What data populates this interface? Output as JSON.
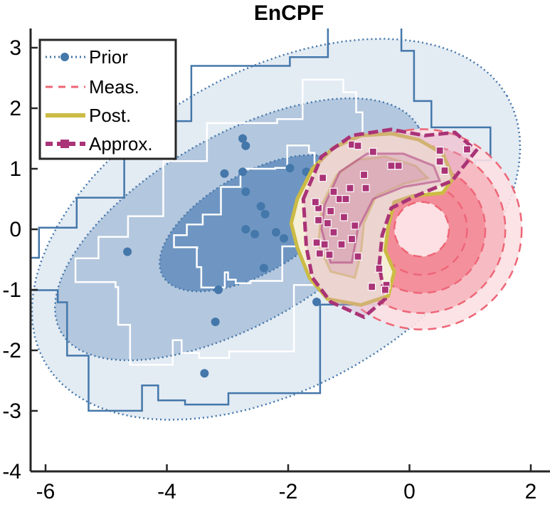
{
  "chart_data": {
    "type": "contour",
    "title": "EnCPF",
    "xlabel": "",
    "ylabel": "",
    "xlim": [
      -6.25,
      2.3
    ],
    "ylim": [
      -4,
      3.3
    ],
    "xticks": [
      -6,
      -4,
      -2,
      0,
      2
    ],
    "xtick_labels": [
      "-6",
      "-4",
      "-2",
      "0",
      "2"
    ],
    "yticks": [
      -4,
      -3,
      -2,
      -1,
      0,
      1,
      2,
      3
    ],
    "ytick_labels": [
      "-4",
      "-3",
      "-2",
      "-1",
      "0",
      "1",
      "2",
      "3"
    ],
    "legend": {
      "location": "top-left",
      "entries": [
        {
          "label": "Prior",
          "style": "dotted line with circle marker",
          "color": "#4477aa"
        },
        {
          "label": "Meas.",
          "style": "dashed line",
          "color": "#ee6677"
        },
        {
          "label": "Post.",
          "style": "solid thick line",
          "color": "#ccbb44"
        },
        {
          "label": "Approx.",
          "style": "thick dashed line with square marker",
          "color": "#aa3377"
        }
      ]
    },
    "series": [
      {
        "name": "Prior",
        "kind": "gaussian contours",
        "center": [
          -2.9,
          0.0
        ],
        "levels": [
          {
            "x_center": -2.2,
            "y_center": 0.0,
            "semi_major": 4.4,
            "semi_minor": 2.6,
            "angle_deg": 30
          },
          {
            "x_center": -2.8,
            "y_center": 0.0,
            "semi_major": 3.4,
            "semi_minor": 1.55,
            "angle_deg": 30
          },
          {
            "x_center": -2.55,
            "y_center": 0.1,
            "semi_major": 1.75,
            "semi_minor": 0.82,
            "angle_deg": 30
          }
        ],
        "ensemble": [
          {
            "x": -2.75,
            "y": 1.5
          },
          {
            "x": -2.7,
            "y": 1.38
          },
          {
            "x": -3.05,
            "y": 0.92
          },
          {
            "x": -2.7,
            "y": 0.62
          },
          {
            "x": -2.75,
            "y": 0.95
          },
          {
            "x": -2.45,
            "y": 0.38
          },
          {
            "x": -2.38,
            "y": 0.25
          },
          {
            "x": -2.7,
            "y": 0.0
          },
          {
            "x": -2.55,
            "y": -0.08
          },
          {
            "x": -2.2,
            "y": -0.05
          },
          {
            "x": -2.07,
            "y": -0.15
          },
          {
            "x": -1.97,
            "y": 1.01
          },
          {
            "x": -1.7,
            "y": 0.95
          },
          {
            "x": -2.4,
            "y": -0.64
          },
          {
            "x": -4.65,
            "y": -0.37
          },
          {
            "x": -3.15,
            "y": -1.0
          },
          {
            "x": -3.2,
            "y": -1.53
          },
          {
            "x": -3.38,
            "y": -2.38
          },
          {
            "x": -1.53,
            "y": -1.2
          },
          {
            "x": -1.75,
            "y": 0.4
          }
        ]
      },
      {
        "name": "Meas.",
        "kind": "ring contours",
        "center": [
          0.2,
          0.0
        ],
        "radii": [
          0.45,
          0.75,
          1.05,
          1.38,
          1.65
        ]
      },
      {
        "name": "Post.",
        "kind": "contour",
        "region": "banana shaped region near x=-1.9..0.75, y=-1.2..1.6"
      },
      {
        "name": "Approx.",
        "kind": "ensemble contours",
        "particles": [
          {
            "x": -0.95,
            "y": 1.4
          },
          {
            "x": -0.85,
            "y": 1.38
          },
          {
            "x": -0.6,
            "y": 1.28
          },
          {
            "x": -0.3,
            "y": 1.05
          },
          {
            "x": -0.18,
            "y": 1.05
          },
          {
            "x": 0.5,
            "y": 1.12
          },
          {
            "x": 0.58,
            "y": 0.97
          },
          {
            "x": 0.5,
            "y": 1.3
          },
          {
            "x": 0.95,
            "y": 1.32
          },
          {
            "x": -1.43,
            "y": 0.85
          },
          {
            "x": -1.25,
            "y": 0.62
          },
          {
            "x": -1.15,
            "y": 0.5
          },
          {
            "x": -0.98,
            "y": 0.68
          },
          {
            "x": -0.72,
            "y": 0.68
          },
          {
            "x": -1.5,
            "y": 0.35
          },
          {
            "x": -1.3,
            "y": 0.3
          },
          {
            "x": -1.08,
            "y": 0.2
          },
          {
            "x": -0.9,
            "y": 0.06
          },
          {
            "x": -0.95,
            "y": -0.16
          },
          {
            "x": -1.5,
            "y": 0.15
          },
          {
            "x": -1.35,
            "y": 0.1
          },
          {
            "x": -1.25,
            "y": -0.05
          },
          {
            "x": -1.4,
            "y": -0.25
          },
          {
            "x": -1.53,
            "y": -0.22
          },
          {
            "x": -1.12,
            "y": -0.25
          },
          {
            "x": -0.85,
            "y": -0.45
          },
          {
            "x": -0.5,
            "y": -0.65
          },
          {
            "x": -1.48,
            "y": -0.4
          },
          {
            "x": -1.32,
            "y": -0.42
          },
          {
            "x": -0.62,
            "y": -0.95
          },
          {
            "x": -0.38,
            "y": -0.92
          },
          {
            "x": -0.4,
            "y": -1.0
          },
          {
            "x": -1.55,
            "y": 0.45
          },
          {
            "x": -0.75,
            "y": 0.9
          },
          {
            "x": -1.05,
            "y": 0.5
          }
        ]
      }
    ]
  }
}
